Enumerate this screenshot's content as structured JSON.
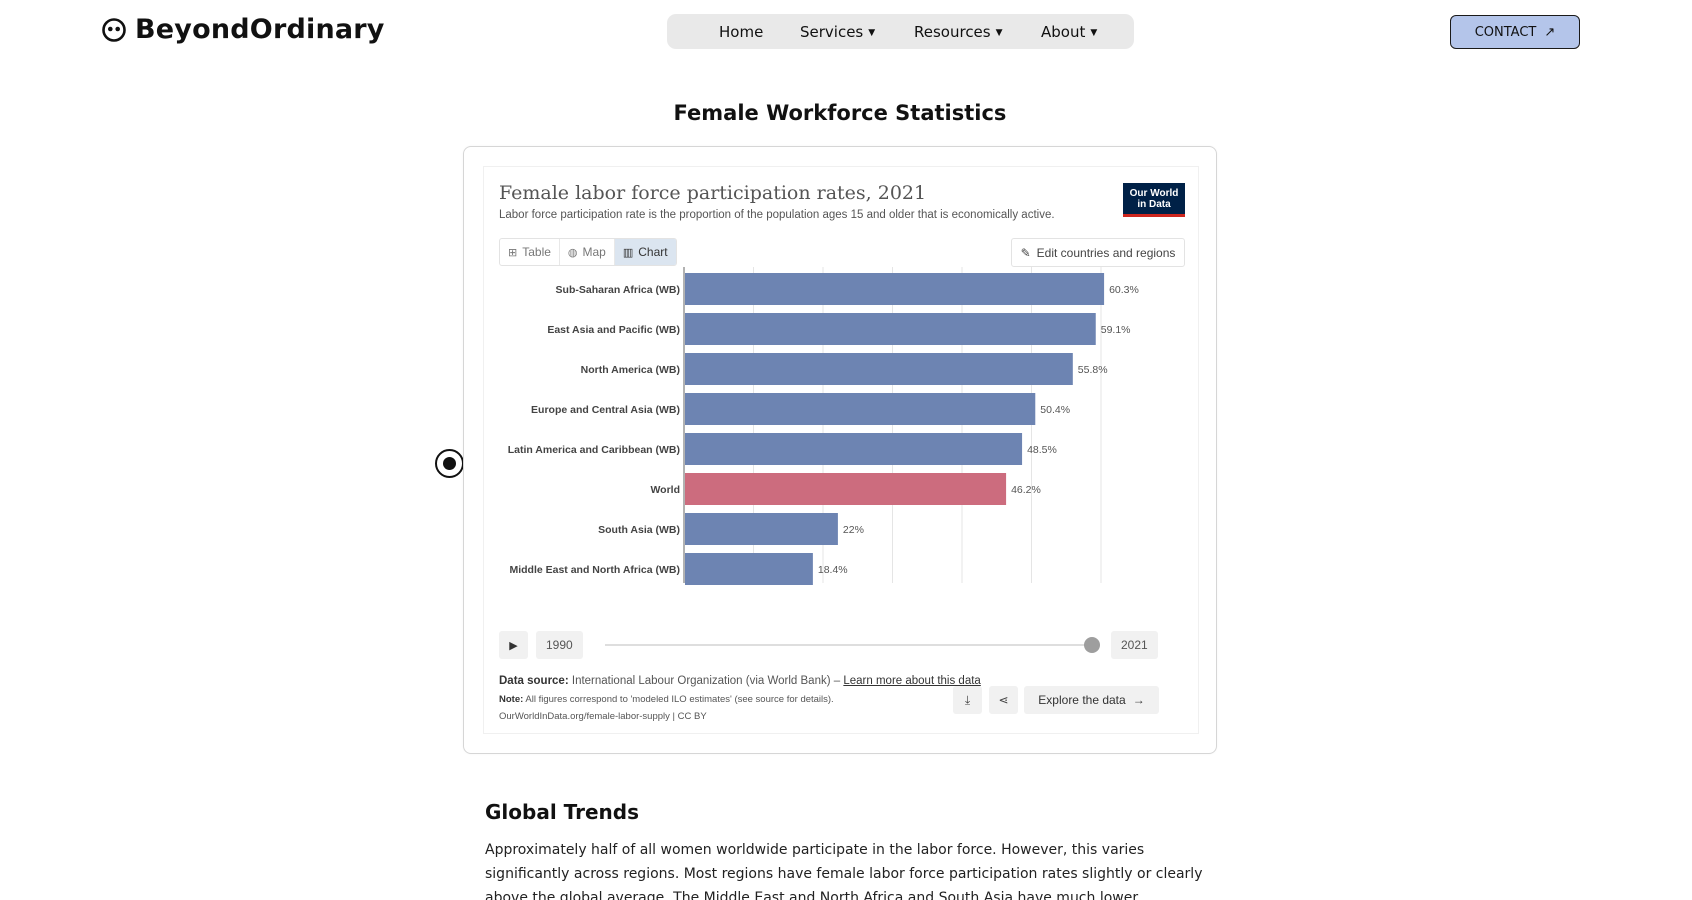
{
  "header": {
    "brand": "BeyondOrdinary",
    "nav": [
      {
        "label": "Home",
        "has_caret": false
      },
      {
        "label": "Services",
        "has_caret": true
      },
      {
        "label": "Resources",
        "has_caret": true
      },
      {
        "label": "About",
        "has_caret": true
      }
    ],
    "contact_label": "CONTACT",
    "contact_icon": "arrow-up-right-icon"
  },
  "page_title": "Female Workforce Statistics",
  "grapher": {
    "title": "Female labor force participation rates, 2021",
    "subtitle": "Labor force participation rate is the proportion of the population ages 15 and older that is economically active.",
    "logo_line1": "Our World",
    "logo_line2": "in Data",
    "tabs": [
      {
        "label": "Table",
        "icon": "table-icon",
        "glyph": "⊞",
        "active": false
      },
      {
        "label": "Map",
        "icon": "globe-icon",
        "glyph": "◍",
        "active": false
      },
      {
        "label": "Chart",
        "icon": "bar-chart-icon",
        "glyph": "▥",
        "active": true
      }
    ],
    "edit_label": "Edit countries and regions",
    "timeline": {
      "start": "1990",
      "end": "2021"
    },
    "source_label": "Data source:",
    "source_text": "International Labour Organization (via World Bank) –",
    "source_link": "Learn more about this data",
    "note_label": "Note:",
    "note_text": "All figures correspond to 'modeled ILO estimates' (see source for details).",
    "url_text": "OurWorldInData.org/female-labor-supply | CC BY",
    "explore_label": "Explore the data"
  },
  "chart_data": {
    "type": "bar",
    "orientation": "horizontal",
    "categories": [
      "Sub-Saharan Africa (WB)",
      "East Asia and Pacific (WB)",
      "North America (WB)",
      "Europe and Central Asia (WB)",
      "Latin America and Caribbean (WB)",
      "World",
      "South Asia (WB)",
      "Middle East and North Africa (WB)"
    ],
    "values": [
      60.3,
      59.1,
      55.8,
      50.4,
      48.5,
      46.2,
      22,
      18.4
    ],
    "value_labels": [
      "60.3%",
      "59.1%",
      "55.8%",
      "50.4%",
      "48.5%",
      "46.2%",
      "22%",
      "18.4%"
    ],
    "highlight": "World",
    "colors": {
      "default": "#6d84b2",
      "highlight": "#cc6c7e"
    },
    "xlim": [
      0,
      60
    ],
    "grid": true
  },
  "section": {
    "heading": "Global Trends",
    "body": "Approximately half of all women worldwide participate in the labor force. However, this varies significantly across regions. Most regions have female labor force participation rates slightly or clearly above the global average. The Middle East and North Africa and South Asia have much lower participation rates. Men tend to"
  }
}
